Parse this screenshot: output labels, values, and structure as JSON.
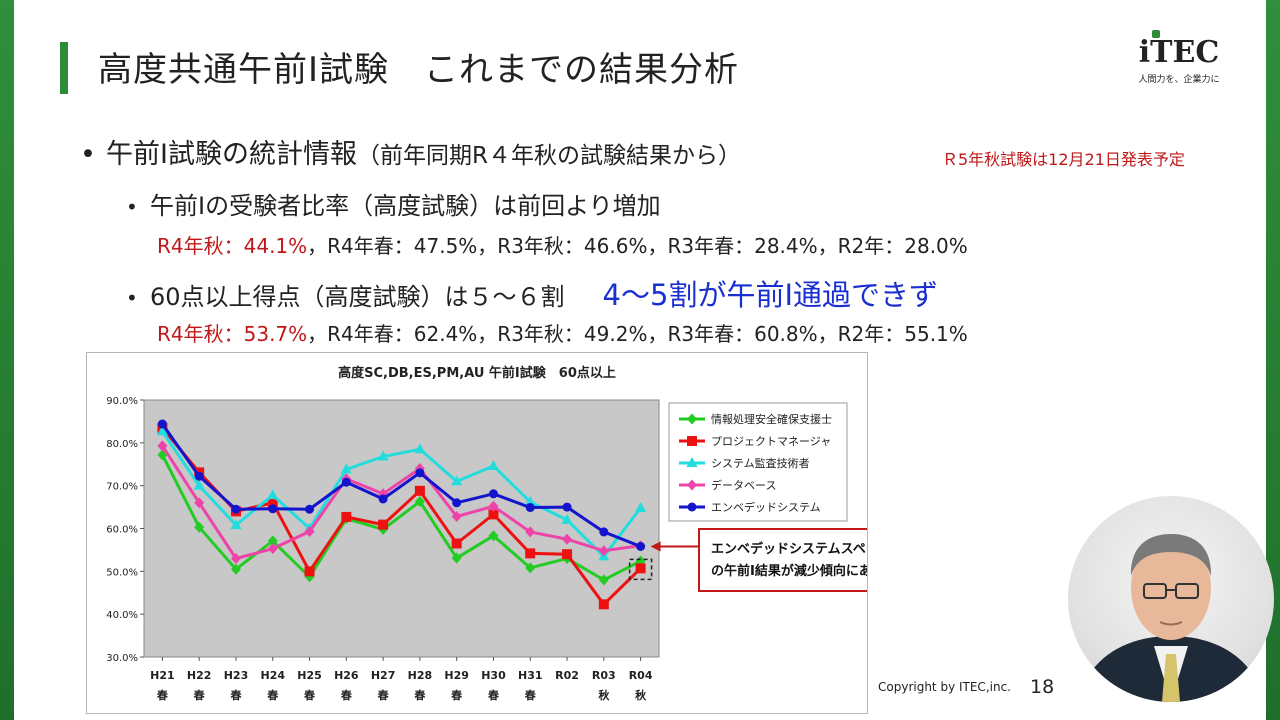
{
  "slide": {
    "title": "高度共通午前Ⅰ試験　これまでの結果分析",
    "logo": {
      "mark": "iTEC",
      "tagline": "人間力を、企業力に"
    },
    "bullet1": {
      "main": "午前Ⅰ試験の統計情報",
      "sub": "（前年同期R４年秋の試験結果から）"
    },
    "note": "Ｒ5年秋試験は12月21日発表予定",
    "bullet2": {
      "text": "午前Ⅰの受験者比率（高度試験）は前回より増加"
    },
    "stats2": {
      "highlight": "R4年秋：44.1%",
      "rest": "，R4年春：47.5%，R3年秋：46.6%，R3年春：28.4%，R2年：28.0%"
    },
    "bullet3": {
      "text": "60点以上得点（高度試験）は５～６割",
      "emphasis": "4～5割が午前Ⅰ通過できず"
    },
    "stats3": {
      "highlight": "R4年秋：53.7%",
      "rest": "，R4年春：62.4%，R3年秋：49.2%，R3年春：60.8%，R2年：55.1%"
    },
    "copyright": "Copyright by ITEC,inc.",
    "page_number": "18"
  },
  "chart_data": {
    "type": "line",
    "title": "高度SC,DB,ES,PM,AU 午前Ⅰ試験　60点以上",
    "categories": [
      [
        "H21",
        "春"
      ],
      [
        "H22",
        "春"
      ],
      [
        "H23",
        "春"
      ],
      [
        "H24",
        "春"
      ],
      [
        "H25",
        "春"
      ],
      [
        "H26",
        "春"
      ],
      [
        "H27",
        "春"
      ],
      [
        "H28",
        "春"
      ],
      [
        "H29",
        "春"
      ],
      [
        "H30",
        "春"
      ],
      [
        "H31",
        "春"
      ],
      [
        "R02",
        ""
      ],
      [
        "R03",
        "秋"
      ],
      [
        "R04",
        "秋"
      ]
    ],
    "ylim": [
      30,
      90
    ],
    "yticks": [
      "30.0%",
      "40.0%",
      "50.0%",
      "60.0%",
      "70.0%",
      "80.0%",
      "90.0%"
    ],
    "grid": false,
    "legend_position": "right",
    "series": [
      {
        "name": "情報処理安全確保支援士",
        "color": "#22cc22",
        "marker": "diamond",
        "values": [
          77.2,
          60.3,
          50.5,
          57.1,
          48.7,
          62.3,
          59.8,
          66.3,
          53.1,
          58.3,
          50.8,
          53.0,
          48.0,
          52.4
        ]
      },
      {
        "name": "プロジェクトマネージャ",
        "color": "#ee1111",
        "marker": "square",
        "values": [
          83.5,
          73.1,
          64.0,
          66.0,
          50.0,
          62.7,
          60.9,
          68.8,
          56.5,
          63.3,
          54.2,
          54.0,
          42.3,
          50.7
        ]
      },
      {
        "name": "システム監査技術者",
        "color": "#22dddd",
        "marker": "triangle",
        "values": [
          82.7,
          70.0,
          60.8,
          67.8,
          60.0,
          73.8,
          76.8,
          78.5,
          71.0,
          74.6,
          66.2,
          62.0,
          53.5,
          64.8
        ]
      },
      {
        "name": "データベース",
        "color": "#ee44aa",
        "marker": "diamond",
        "values": [
          79.3,
          66.0,
          53.0,
          55.3,
          59.3,
          71.6,
          68.1,
          74.0,
          62.8,
          65.2,
          59.2,
          57.5,
          54.8,
          56.0
        ]
      },
      {
        "name": "エンベデッドシステム",
        "color": "#1414cc",
        "marker": "circle",
        "values": [
          84.4,
          72.2,
          64.5,
          64.6,
          64.5,
          70.8,
          66.9,
          73.0,
          66.0,
          68.1,
          64.9,
          65.0,
          59.2,
          55.8
        ]
      }
    ],
    "annotation": {
      "text": [
        "エンベデッドシステムスペシャリスト受験者",
        "の午前Ⅰ結果が減少傾向にある。"
      ],
      "border_color": "#c01818"
    }
  }
}
